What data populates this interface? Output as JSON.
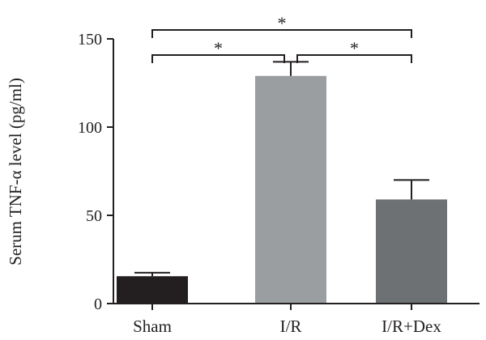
{
  "chart_data": {
    "type": "bar",
    "title": "",
    "xlabel": "",
    "ylabel": "Serum TNF-α level (pg/ml)",
    "ylim": [
      0,
      150
    ],
    "yticks": [
      0,
      50,
      100,
      150
    ],
    "categories": [
      "Sham",
      "I/R",
      "I/R+Dex"
    ],
    "values": [
      15.5,
      129,
      59
    ],
    "errors": [
      2,
      8,
      11
    ],
    "colors": [
      "#231f20",
      "#9a9ea1",
      "#6d7173"
    ],
    "grid": false,
    "significance": [
      {
        "from": "Sham",
        "to": "I/R",
        "label": "*"
      },
      {
        "from": "I/R",
        "to": "I/R+Dex",
        "label": "*"
      },
      {
        "from": "Sham",
        "to": "I/R+Dex",
        "label": "*"
      }
    ]
  }
}
